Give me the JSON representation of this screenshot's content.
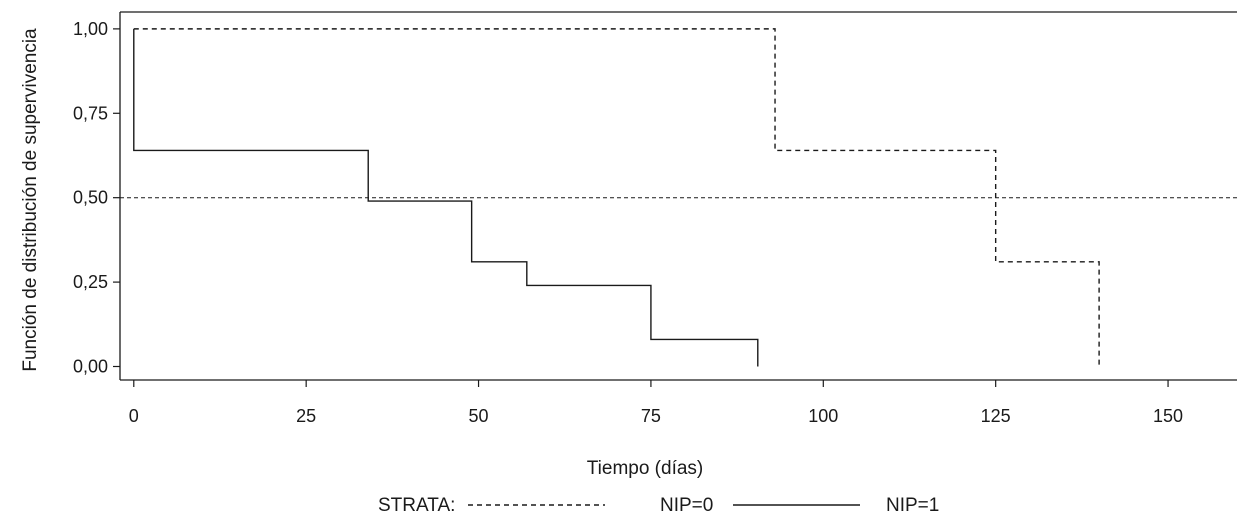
{
  "chart_data": {
    "type": "line",
    "subtype": "kaplan-meier-step",
    "xlabel": "Tiempo (días)",
    "ylabel": "Función de distribución de supervivencia",
    "xlim": [
      -2,
      160
    ],
    "ylim": [
      -0.04,
      1.05
    ],
    "x_ticks": [
      0,
      25,
      50,
      75,
      100,
      125,
      150
    ],
    "x_tick_labels": [
      "0",
      "25",
      "50",
      "75",
      "100",
      "125",
      "150"
    ],
    "y_ticks": [
      0,
      0.25,
      0.5,
      0.75,
      1
    ],
    "y_tick_labels": [
      "0,00",
      "0,25",
      "0,50",
      "0,75",
      "1,00"
    ],
    "grid": false,
    "legend_position": "bottom",
    "legend": {
      "title": "STRATA:"
    },
    "reference_line": {
      "y": 0.5,
      "style": "dashed"
    },
    "series": [
      {
        "name": "NIP=0",
        "style": "dashed",
        "steps": [
          [
            0,
            1.0
          ],
          [
            93,
            0.64
          ],
          [
            125,
            0.31
          ],
          [
            140,
            0.0
          ]
        ]
      },
      {
        "name": "NIP=1",
        "style": "solid",
        "steps": [
          [
            0,
            0.64
          ],
          [
            34,
            0.49
          ],
          [
            49,
            0.31
          ],
          [
            57,
            0.24
          ],
          [
            75,
            0.08
          ],
          [
            90.5,
            0.0
          ]
        ]
      }
    ],
    "colors": {
      "line": "#1a1a1a",
      "background": "#ffffff"
    }
  }
}
